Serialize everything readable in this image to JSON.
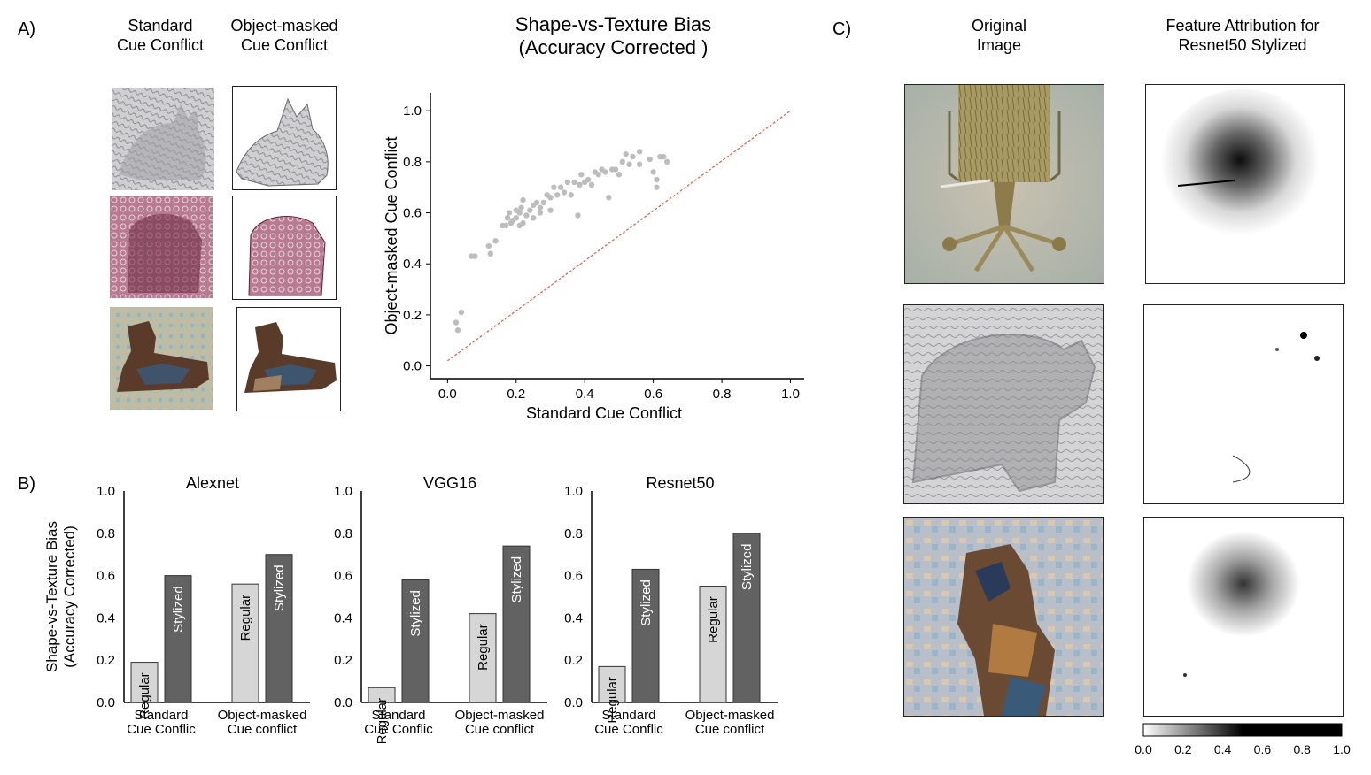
{
  "panels": {
    "a": "A)",
    "b": "B)",
    "c": "C)"
  },
  "panel_a": {
    "col1_title": [
      "Standard",
      "Cue Conflict"
    ],
    "col2_title": [
      "Object-masked",
      "Cue Conflict"
    ],
    "thumbnails": [
      "cat",
      "bear",
      "dog"
    ]
  },
  "panel_c": {
    "col1_title": [
      "Original",
      "Image"
    ],
    "col2_title": [
      "Feature Attribution for",
      "Resnet50 Stylized"
    ],
    "images": [
      "chair",
      "elephant",
      "dog"
    ],
    "colorbar_ticks": [
      "0.0",
      "0.2",
      "0.4",
      "0.6",
      "0.8",
      "1.0"
    ]
  },
  "colors": {
    "scatter_point": "#bdbdbd",
    "diagonal": "#e8584a",
    "regular_bar": "#d6d6d6",
    "stylized_bar": "#626262"
  },
  "chart_data": [
    {
      "type": "scatter",
      "title": "Shape-vs-Texture Bias",
      "subtitle": "(Accuracy Corrected )",
      "xlabel": "Standard Cue Conflict",
      "ylabel": "Object-masked Cue Conflict",
      "xlim": [
        -0.05,
        1.04
      ],
      "ylim": [
        -0.05,
        1.07
      ],
      "xticks": [
        "0.0",
        "0.2",
        "0.4",
        "0.6",
        "0.8",
        "1.0"
      ],
      "yticks": [
        "0.0",
        "0.2",
        "0.4",
        "0.6",
        "0.8",
        "1.0"
      ],
      "diagonal": [
        [
          0.0,
          0.02
        ],
        [
          1.0,
          1.0
        ]
      ],
      "points": [
        [
          0.025,
          0.17
        ],
        [
          0.03,
          0.14
        ],
        [
          0.04,
          0.21
        ],
        [
          0.07,
          0.43
        ],
        [
          0.08,
          0.43
        ],
        [
          0.12,
          0.47
        ],
        [
          0.125,
          0.44
        ],
        [
          0.14,
          0.49
        ],
        [
          0.16,
          0.55
        ],
        [
          0.17,
          0.55
        ],
        [
          0.175,
          0.58
        ],
        [
          0.18,
          0.6
        ],
        [
          0.185,
          0.56
        ],
        [
          0.19,
          0.57
        ],
        [
          0.2,
          0.58
        ],
        [
          0.2,
          0.61
        ],
        [
          0.21,
          0.55
        ],
        [
          0.21,
          0.6
        ],
        [
          0.215,
          0.62
        ],
        [
          0.22,
          0.56
        ],
        [
          0.22,
          0.65
        ],
        [
          0.23,
          0.59
        ],
        [
          0.24,
          0.61
        ],
        [
          0.25,
          0.63
        ],
        [
          0.25,
          0.58
        ],
        [
          0.26,
          0.64
        ],
        [
          0.27,
          0.62
        ],
        [
          0.27,
          0.6
        ],
        [
          0.28,
          0.64
        ],
        [
          0.29,
          0.67
        ],
        [
          0.3,
          0.66
        ],
        [
          0.3,
          0.61
        ],
        [
          0.31,
          0.7
        ],
        [
          0.32,
          0.67
        ],
        [
          0.33,
          0.7
        ],
        [
          0.34,
          0.68
        ],
        [
          0.35,
          0.72
        ],
        [
          0.36,
          0.67
        ],
        [
          0.37,
          0.72
        ],
        [
          0.38,
          0.59
        ],
        [
          0.385,
          0.71
        ],
        [
          0.39,
          0.75
        ],
        [
          0.4,
          0.72
        ],
        [
          0.41,
          0.73
        ],
        [
          0.42,
          0.71
        ],
        [
          0.43,
          0.76
        ],
        [
          0.44,
          0.75
        ],
        [
          0.45,
          0.77
        ],
        [
          0.46,
          0.76
        ],
        [
          0.47,
          0.66
        ],
        [
          0.48,
          0.77
        ],
        [
          0.49,
          0.77
        ],
        [
          0.5,
          0.75
        ],
        [
          0.51,
          0.8
        ],
        [
          0.52,
          0.83
        ],
        [
          0.53,
          0.79
        ],
        [
          0.54,
          0.82
        ],
        [
          0.56,
          0.79
        ],
        [
          0.56,
          0.84
        ],
        [
          0.59,
          0.81
        ],
        [
          0.6,
          0.76
        ],
        [
          0.61,
          0.73
        ],
        [
          0.61,
          0.7
        ],
        [
          0.62,
          0.82
        ],
        [
          0.63,
          0.82
        ],
        [
          0.64,
          0.8
        ]
      ]
    },
    {
      "type": "bar",
      "title": "Alexnet",
      "ylabel": [
        "Shape-vs-Texture Bias",
        "(Accuracy Corrected)"
      ],
      "ylim": [
        0,
        1.0
      ],
      "yticks": [
        "0.0",
        "0.2",
        "0.4",
        "0.6",
        "0.8",
        "1.0"
      ],
      "categories": [
        [
          "Standard",
          "Cue Conflic"
        ],
        [
          "Object-masked",
          "Cue conflict"
        ]
      ],
      "series": [
        {
          "name": "Regular",
          "values": [
            0.19,
            0.56
          ]
        },
        {
          "name": "Stylized",
          "values": [
            0.6,
            0.7
          ]
        }
      ]
    },
    {
      "type": "bar",
      "title": "VGG16",
      "ylabel": [],
      "ylim": [
        0,
        1.0
      ],
      "yticks": [
        "0.0",
        "0.2",
        "0.4",
        "0.6",
        "0.8",
        "1.0"
      ],
      "categories": [
        [
          "Standard",
          "Cue Conflic"
        ],
        [
          "Object-masked",
          "Cue conflict"
        ]
      ],
      "series": [
        {
          "name": "Regular",
          "values": [
            0.07,
            0.42
          ]
        },
        {
          "name": "Stylized",
          "values": [
            0.58,
            0.74
          ]
        }
      ]
    },
    {
      "type": "bar",
      "title": "Resnet50",
      "ylabel": [],
      "ylim": [
        0,
        1.0
      ],
      "yticks": [
        "0.0",
        "0.2",
        "0.4",
        "0.6",
        "0.8",
        "1.0"
      ],
      "categories": [
        [
          "Standard",
          "Cue Conflic"
        ],
        [
          "Object-masked",
          "Cue conflict"
        ]
      ],
      "series": [
        {
          "name": "Regular",
          "values": [
            0.17,
            0.55
          ]
        },
        {
          "name": "Stylized",
          "values": [
            0.63,
            0.8
          ]
        }
      ]
    }
  ]
}
